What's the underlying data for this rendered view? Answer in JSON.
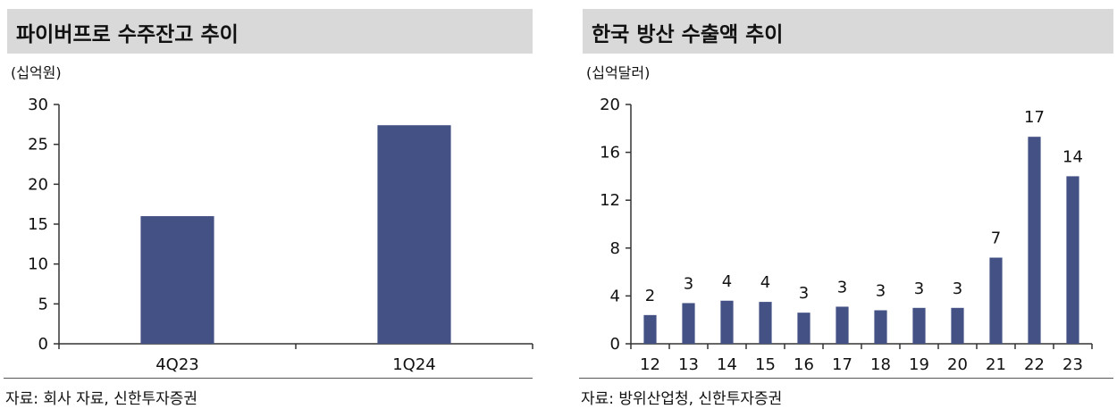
{
  "left": {
    "title": "파이버프로 수주잔고 추이",
    "unit": "(십억원)",
    "source": "자료: 회사 자료, 신한투자증권",
    "chart_data": {
      "type": "bar",
      "categories": [
        "4Q23",
        "1Q24"
      ],
      "values": [
        16,
        27.4
      ],
      "title": "파이버프로 수주잔고 추이",
      "ylabel": "(십억원)",
      "ylim": [
        0,
        30
      ],
      "yticks": [
        0,
        5,
        10,
        15,
        20,
        25,
        30
      ],
      "grid": false
    }
  },
  "right": {
    "title": "한국 방산 수출액 추이",
    "unit": "(십억달러)",
    "source": "자료: 방위산업청, 신한투자증권",
    "chart_data": {
      "type": "bar",
      "categories": [
        "12",
        "13",
        "14",
        "15",
        "16",
        "17",
        "18",
        "19",
        "20",
        "21",
        "22",
        "23"
      ],
      "values": [
        2.4,
        3.4,
        3.6,
        3.5,
        2.6,
        3.1,
        2.8,
        3.0,
        3.0,
        7.2,
        17.3,
        14.0
      ],
      "labels": [
        "2",
        "3",
        "4",
        "4",
        "3",
        "3",
        "3",
        "3",
        "3",
        "7",
        "17",
        "14"
      ],
      "title": "한국 방산 수출액 추이",
      "ylabel": "(십억달러)",
      "ylim": [
        0,
        20
      ],
      "yticks": [
        0,
        4,
        8,
        12,
        16,
        20
      ],
      "grid": false
    }
  },
  "colors": {
    "bar": "#435185",
    "axis": "#333333",
    "title_bg": "#d9d9d9"
  }
}
